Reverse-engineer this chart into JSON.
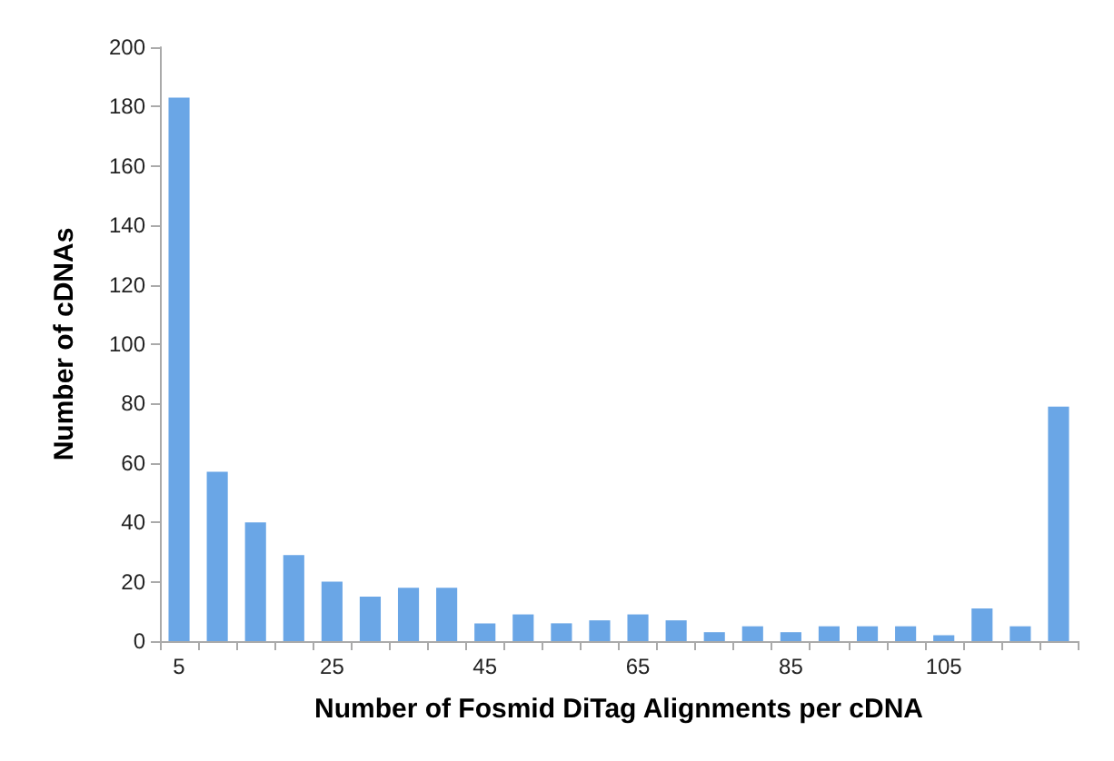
{
  "chart_data": {
    "type": "bar",
    "xlabel": "Number of Fosmid DiTag Alignments per cDNA",
    "ylabel": "Number of cDNAs",
    "categories": [
      "5",
      null,
      null,
      null,
      "25",
      null,
      null,
      null,
      "45",
      null,
      null,
      null,
      "65",
      null,
      null,
      null,
      "85",
      null,
      null,
      null,
      "105",
      null,
      null,
      null
    ],
    "values": [
      183,
      57,
      40,
      29,
      20,
      15,
      18,
      18,
      6,
      9,
      6,
      7,
      9,
      7,
      3,
      5,
      3,
      5,
      5,
      5,
      2,
      11,
      5,
      79
    ],
    "color": "#6aa6e6",
    "ylim": [
      0,
      200
    ],
    "yticks": [
      0,
      20,
      40,
      60,
      80,
      100,
      120,
      140,
      160,
      180,
      200
    ],
    "grid": false
  }
}
